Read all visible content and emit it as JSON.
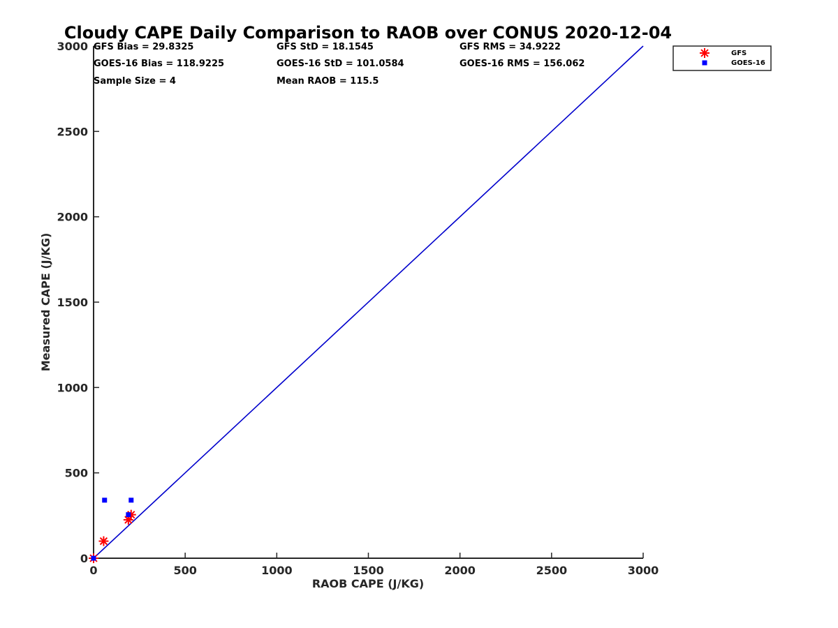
{
  "chart_data": {
    "type": "scatter",
    "title": "Cloudy CAPE Daily Comparison to RAOB over CONUS 2020-12-04",
    "xlabel": "RAOB CAPE (J/KG)",
    "ylabel": "Measured CAPE (J/KG)",
    "xlim": [
      0,
      3000
    ],
    "ylim": [
      0,
      3000
    ],
    "xticks": [
      "0",
      "500",
      "1000",
      "1500",
      "2000",
      "2500",
      "3000"
    ],
    "yticks": [
      "0",
      "500",
      "1000",
      "1500",
      "2000",
      "2500",
      "3000"
    ],
    "grid": false,
    "legend_placement": "outside top-right",
    "series": [
      {
        "name": "GFS",
        "marker": "asterisk",
        "color": "#ff0000",
        "points": [
          [
            0,
            0
          ],
          [
            55,
            100
          ],
          [
            190,
            225
          ],
          [
            205,
            255
          ]
        ]
      },
      {
        "name": "GOES-16",
        "marker": "square",
        "color": "#0000ff",
        "points": [
          [
            0,
            0
          ],
          [
            60,
            340
          ],
          [
            190,
            255
          ],
          [
            205,
            340
          ]
        ]
      }
    ],
    "reference_line": {
      "color": "#0000cc",
      "points": [
        [
          0,
          0
        ],
        [
          3000,
          3000
        ]
      ]
    },
    "stats": {
      "gfs_bias": "GFS Bias = 29.8325",
      "gfs_std": "GFS StD = 18.1545",
      "gfs_rms": "GFS RMS = 34.9222",
      "goes_bias": "GOES-16 Bias = 118.9225",
      "goes_std": "GOES-16 StD = 101.0584",
      "goes_rms": "GOES-16 RMS = 156.062",
      "sample_size": "Sample Size = 4",
      "mean_raob": "Mean RAOB = 115.5"
    }
  }
}
